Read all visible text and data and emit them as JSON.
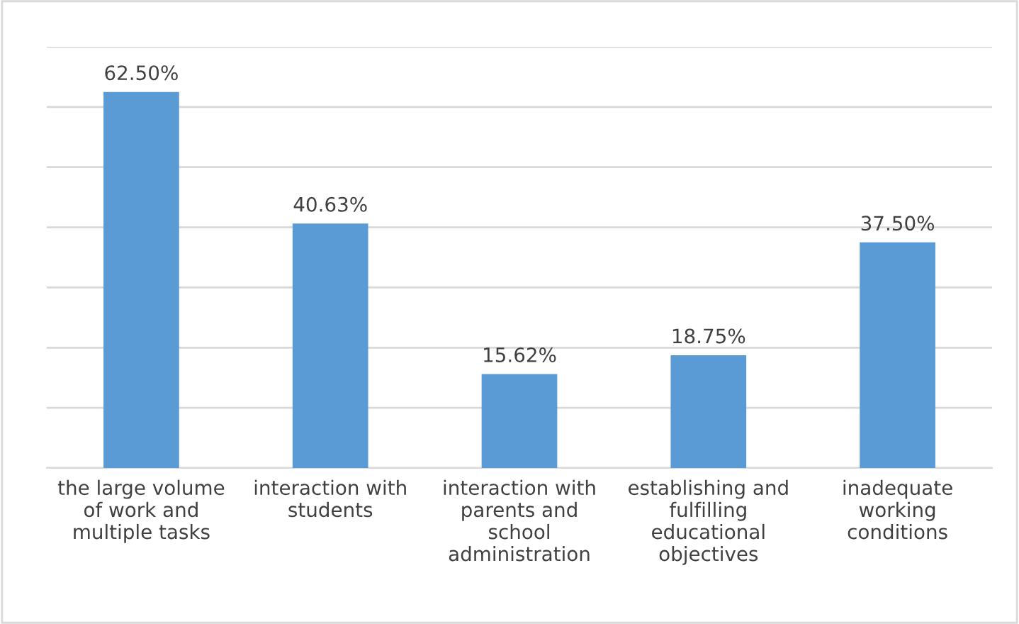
{
  "chart_data": {
    "type": "bar",
    "categories": [
      "the large volume of work and multiple tasks",
      "interaction with students",
      "interaction with parents and school administration",
      "establishing and fulfilling educational objectives",
      "inadequate working conditions"
    ],
    "values": [
      62.5,
      40.63,
      15.62,
      18.75,
      37.5
    ],
    "value_labels": [
      "62.50%",
      "40.63%",
      "15.62%",
      "18.75%",
      "37.50%"
    ],
    "color": "#5b9bd5",
    "ylim": [
      0,
      70
    ],
    "yticks": [
      {
        "value": 0,
        "label": null
      },
      {
        "value": 10,
        "label": null
      },
      {
        "value": 20,
        "label": null
      },
      {
        "value": 30,
        "label": null
      },
      {
        "value": 40,
        "label": null
      },
      {
        "value": 50,
        "label": null
      },
      {
        "value": 60,
        "label": null
      },
      {
        "value": 70,
        "label": null
      }
    ],
    "grid": "y",
    "tick_labels": "x"
  }
}
